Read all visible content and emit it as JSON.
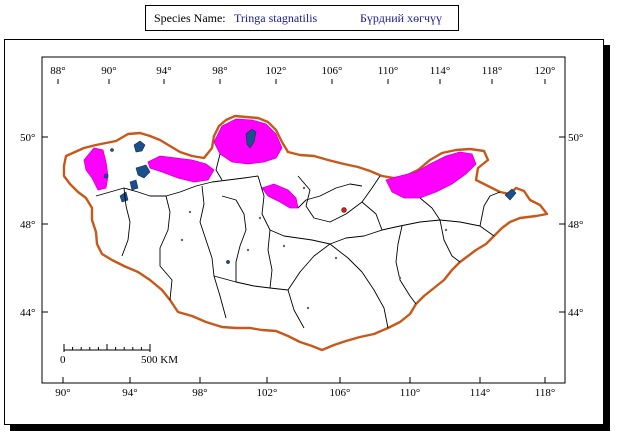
{
  "header": {
    "species_label": "Species Name:",
    "species_name": "Tringa stagnatilis",
    "local_name": "Бүрдний хөгчүү"
  },
  "axes": {
    "top_longitudes": [
      "88°",
      "90°",
      "94°",
      "98°",
      "102°",
      "106°",
      "110°",
      "114°",
      "118°",
      "120°"
    ],
    "bottom_longitudes": [
      "90°",
      "94°",
      "98°",
      "102°",
      "106°",
      "110°",
      "114°",
      "118°"
    ],
    "left_latitudes": [
      "50°",
      "48°",
      "44°"
    ],
    "right_latitudes": [
      "50°",
      "48°",
      "44°"
    ]
  },
  "scale_bar": {
    "start_label": "0",
    "end_label": "500 KM"
  },
  "colors": {
    "border": "#c8581a",
    "range": "#ff00ff",
    "water": "#1a4f8c",
    "admin": "#000000"
  }
}
